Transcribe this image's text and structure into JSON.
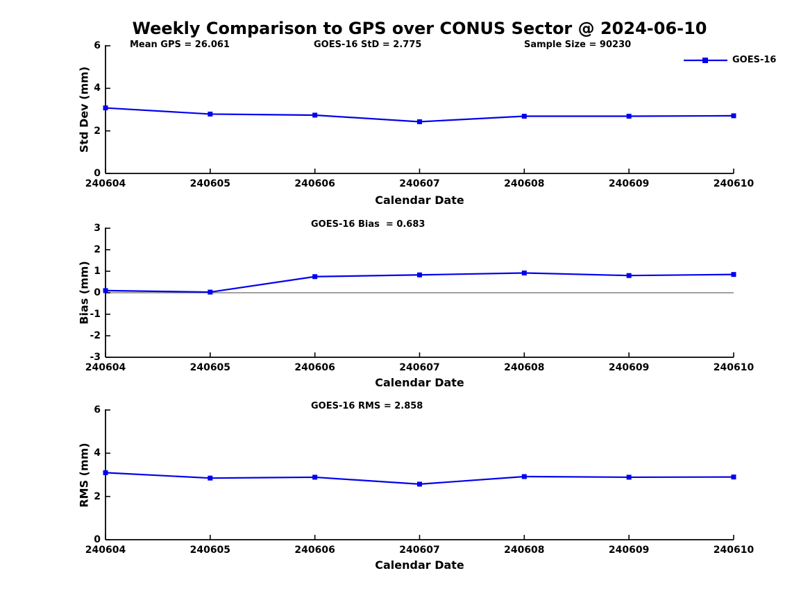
{
  "title": "Weekly Comparison to GPS over CONUS Sector @ 2024-06-10",
  "header_stats": {
    "mean_gps": "Mean GPS = 26.061",
    "std": "GOES-16 StD = 2.775",
    "sample_size": "Sample Size = 90230"
  },
  "legend": {
    "label": "GOES-16",
    "position": "top-right"
  },
  "colors": {
    "line": "#0000EE",
    "zero_line": "#808080",
    "axis": "#000000",
    "text": "#000000",
    "background": "#FFFFFF"
  },
  "chart_data": [
    {
      "type": "line",
      "name": "subplot-stddev",
      "ylabel": "Std Dev (mm)",
      "xlabel": "Calendar Date",
      "annotation": "",
      "x": [
        "240604",
        "240605",
        "240606",
        "240607",
        "240608",
        "240609",
        "240610"
      ],
      "series": [
        {
          "name": "GOES-16",
          "marker": "square",
          "values": [
            3.08,
            2.79,
            2.74,
            2.43,
            2.69,
            2.69,
            2.71
          ]
        }
      ],
      "ylim": [
        0,
        6
      ],
      "yticks": [
        0,
        2,
        4,
        6
      ],
      "zero_line": false,
      "grid": false
    },
    {
      "type": "line",
      "name": "subplot-bias",
      "ylabel": "Bias (mm)",
      "xlabel": "Calendar Date",
      "annotation": "GOES-16 Bias  = 0.683",
      "x": [
        "240604",
        "240605",
        "240606",
        "240607",
        "240608",
        "240609",
        "240610"
      ],
      "series": [
        {
          "name": "GOES-16",
          "marker": "square",
          "values": [
            0.1,
            0.03,
            0.75,
            0.83,
            0.92,
            0.8,
            0.85
          ]
        }
      ],
      "ylim": [
        -3,
        3
      ],
      "yticks": [
        -3,
        -2,
        -1,
        0,
        1,
        2,
        3
      ],
      "zero_line": true,
      "grid": false
    },
    {
      "type": "line",
      "name": "subplot-rms",
      "ylabel": "RMS (mm)",
      "xlabel": "Calendar Date",
      "annotation": "GOES-16 RMS = 2.858",
      "x": [
        "240604",
        "240605",
        "240606",
        "240607",
        "240608",
        "240609",
        "240610"
      ],
      "series": [
        {
          "name": "GOES-16",
          "marker": "square",
          "values": [
            3.1,
            2.85,
            2.89,
            2.57,
            2.92,
            2.89,
            2.9
          ]
        }
      ],
      "ylim": [
        0,
        6
      ],
      "yticks": [
        0,
        2,
        4,
        6
      ],
      "zero_line": false,
      "grid": false
    }
  ]
}
